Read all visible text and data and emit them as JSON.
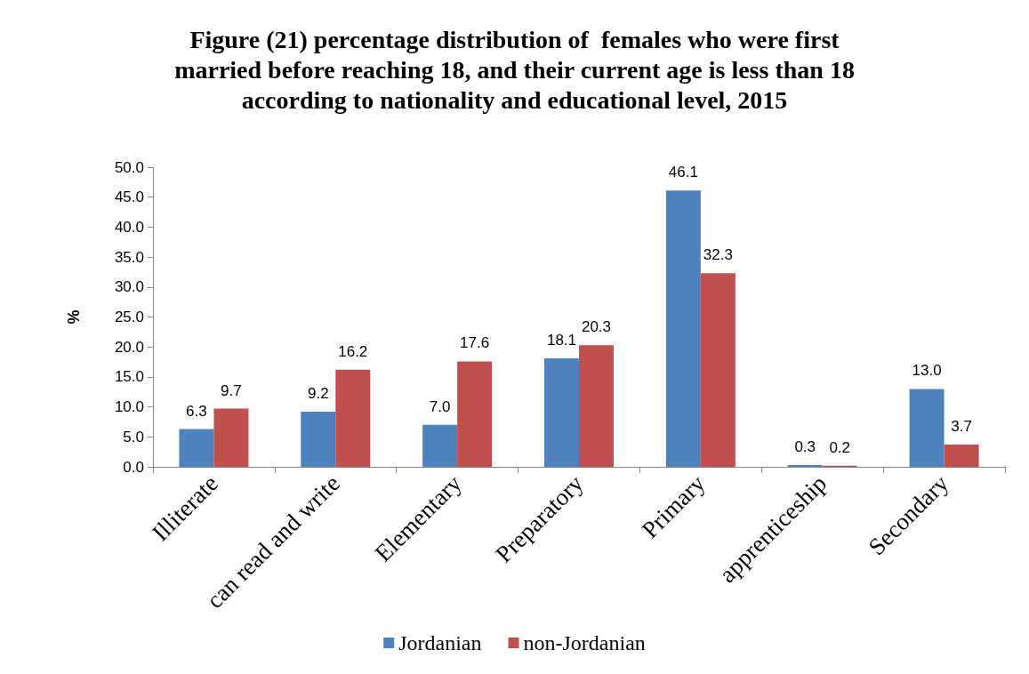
{
  "chart_data": {
    "type": "bar",
    "title": "Figure (21) percentage distribution of  females who were first\nmarried before reaching 18, and their current age is less than 18\naccording to nationality and educational level, 2015",
    "ylabel": "%",
    "categories": [
      "Illiterate",
      "can read and write",
      "Elementary",
      "Preparatory",
      "Primary",
      "apprenticeship",
      "Secondary"
    ],
    "series": [
      {
        "name": "Jordanian",
        "color": "#4f81bd",
        "values": [
          6.3,
          9.2,
          7.0,
          18.1,
          46.1,
          0.3,
          13.0
        ],
        "value_labels": [
          "6.3",
          "9.2",
          "7.0",
          "18.1",
          "46.1",
          "0.3",
          "13.0"
        ]
      },
      {
        "name": "non-Jordanian",
        "color": "#c0504d",
        "values": [
          9.7,
          16.2,
          17.6,
          20.3,
          32.3,
          0.2,
          3.7
        ],
        "value_labels": [
          "9.7",
          "16.2",
          "17.6",
          "20.3",
          "32.3",
          "0.2",
          "3.7"
        ]
      }
    ],
    "ylim": [
      0,
      50
    ],
    "yticks": [
      {
        "value": 0,
        "label": "0.0"
      },
      {
        "value": 5,
        "label": "5.0"
      },
      {
        "value": 10,
        "label": "10.0"
      },
      {
        "value": 15,
        "label": "15.0"
      },
      {
        "value": 20,
        "label": "20.0"
      },
      {
        "value": 25,
        "label": "25.0"
      },
      {
        "value": 30,
        "label": "30.0"
      },
      {
        "value": 35,
        "label": "35.0"
      },
      {
        "value": 40,
        "label": "40.0"
      },
      {
        "value": 45,
        "label": "45.0"
      },
      {
        "value": 50,
        "label": "50.0"
      }
    ],
    "grid": false,
    "legend": "bottom"
  }
}
